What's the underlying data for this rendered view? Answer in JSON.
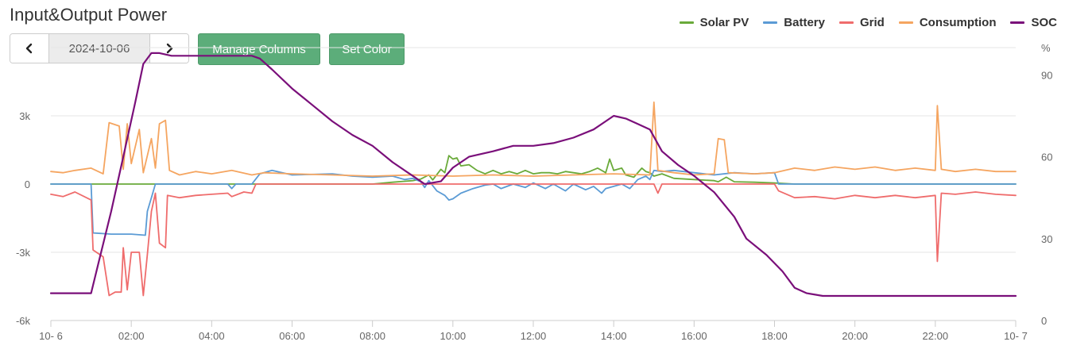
{
  "header": {
    "title": "Input&Output Power",
    "date": "2024-10-06",
    "manage_columns_label": "Manage Columns",
    "set_color_label": "Set Color"
  },
  "chart_data": {
    "type": "line",
    "title": "Input&Output Power",
    "xlabel": "",
    "ylabel": "",
    "y2label": "%",
    "x_ticks": [
      "10- 6",
      "02:00",
      "04:00",
      "06:00",
      "08:00",
      "10:00",
      "12:00",
      "14:00",
      "16:00",
      "18:00",
      "20:00",
      "22:00",
      "10- 7"
    ],
    "x_range_hours": [
      0,
      24
    ],
    "ylim": [
      -6000,
      6000
    ],
    "y_ticks": [
      "-6k",
      "-3k",
      "0",
      "3k"
    ],
    "y_tick_values": [
      -6000,
      -3000,
      0,
      3000
    ],
    "y2lim": [
      0,
      100
    ],
    "y2_ticks": [
      "0",
      "30",
      "60",
      "90",
      "%"
    ],
    "y2_tick_values": [
      0,
      30,
      60,
      90,
      100
    ],
    "grid": true,
    "legend_position": "top-right",
    "series": [
      {
        "name": "Solar PV",
        "color": "#6aaa3a",
        "axis": "left",
        "points": [
          [
            0,
            0
          ],
          [
            8,
            0
          ],
          [
            8.5,
            80
          ],
          [
            9,
            150
          ],
          [
            9.2,
            220
          ],
          [
            9.4,
            400
          ],
          [
            9.5,
            180
          ],
          [
            9.7,
            650
          ],
          [
            9.8,
            500
          ],
          [
            9.9,
            1250
          ],
          [
            10.0,
            1100
          ],
          [
            10.1,
            1150
          ],
          [
            10.2,
            800
          ],
          [
            10.4,
            850
          ],
          [
            10.6,
            600
          ],
          [
            10.8,
            450
          ],
          [
            11.0,
            600
          ],
          [
            11.2,
            450
          ],
          [
            11.4,
            550
          ],
          [
            11.6,
            450
          ],
          [
            11.8,
            600
          ],
          [
            12.0,
            450
          ],
          [
            12.2,
            500
          ],
          [
            12.4,
            500
          ],
          [
            12.6,
            450
          ],
          [
            12.8,
            550
          ],
          [
            13.0,
            500
          ],
          [
            13.2,
            450
          ],
          [
            13.4,
            550
          ],
          [
            13.6,
            700
          ],
          [
            13.8,
            500
          ],
          [
            13.9,
            1100
          ],
          [
            14.0,
            600
          ],
          [
            14.2,
            700
          ],
          [
            14.3,
            400
          ],
          [
            14.5,
            300
          ],
          [
            14.7,
            700
          ],
          [
            14.8,
            550
          ],
          [
            14.9,
            500
          ],
          [
            15.0,
            350
          ],
          [
            15.2,
            450
          ],
          [
            15.5,
            250
          ],
          [
            16.0,
            200
          ],
          [
            16.5,
            150
          ],
          [
            16.6,
            100
          ],
          [
            16.8,
            300
          ],
          [
            17.0,
            100
          ],
          [
            17.5,
            80
          ],
          [
            18.0,
            50
          ],
          [
            18.5,
            0
          ],
          [
            24,
            0
          ]
        ]
      },
      {
        "name": "Battery",
        "color": "#5b9bd5",
        "axis": "left",
        "points": [
          [
            0,
            0
          ],
          [
            1,
            0
          ],
          [
            1.05,
            -2150
          ],
          [
            1.5,
            -2200
          ],
          [
            2,
            -2200
          ],
          [
            2.35,
            -2250
          ],
          [
            2.4,
            -1200
          ],
          [
            2.5,
            -600
          ],
          [
            2.6,
            0
          ],
          [
            4.4,
            0
          ],
          [
            4.5,
            -200
          ],
          [
            4.6,
            0
          ],
          [
            5.0,
            0
          ],
          [
            5.2,
            450
          ],
          [
            5.5,
            600
          ],
          [
            6.0,
            400
          ],
          [
            7.0,
            450
          ],
          [
            7.5,
            350
          ],
          [
            8.0,
            300
          ],
          [
            8.5,
            350
          ],
          [
            8.8,
            200
          ],
          [
            9.0,
            250
          ],
          [
            9.2,
            100
          ],
          [
            9.3,
            -150
          ],
          [
            9.4,
            150
          ],
          [
            9.6,
            -300
          ],
          [
            9.8,
            -500
          ],
          [
            9.9,
            -700
          ],
          [
            10.0,
            -650
          ],
          [
            10.2,
            -400
          ],
          [
            10.5,
            -200
          ],
          [
            10.8,
            -50
          ],
          [
            11.0,
            0
          ],
          [
            11.2,
            -200
          ],
          [
            11.5,
            0
          ],
          [
            11.8,
            -150
          ],
          [
            12.0,
            50
          ],
          [
            12.3,
            -200
          ],
          [
            12.5,
            0
          ],
          [
            12.8,
            -300
          ],
          [
            13.0,
            0
          ],
          [
            13.3,
            -250
          ],
          [
            13.5,
            -100
          ],
          [
            13.7,
            -400
          ],
          [
            13.8,
            -200
          ],
          [
            14.0,
            -100
          ],
          [
            14.2,
            0
          ],
          [
            14.4,
            -200
          ],
          [
            14.6,
            200
          ],
          [
            14.8,
            350
          ],
          [
            14.9,
            200
          ],
          [
            15.0,
            600
          ],
          [
            15.2,
            550
          ],
          [
            15.5,
            600
          ],
          [
            16.0,
            500
          ],
          [
            16.5,
            400
          ],
          [
            17.0,
            500
          ],
          [
            17.5,
            450
          ],
          [
            18.0,
            500
          ],
          [
            18.1,
            0
          ],
          [
            24,
            0
          ]
        ]
      },
      {
        "name": "Grid",
        "color": "#ef6c6c",
        "axis": "left",
        "points": [
          [
            0,
            -450
          ],
          [
            0.3,
            -550
          ],
          [
            0.6,
            -350
          ],
          [
            1.0,
            -700
          ],
          [
            1.05,
            -2900
          ],
          [
            1.3,
            -3200
          ],
          [
            1.45,
            -4900
          ],
          [
            1.6,
            -4750
          ],
          [
            1.75,
            -4750
          ],
          [
            1.8,
            -2800
          ],
          [
            1.9,
            -4650
          ],
          [
            2.0,
            -3000
          ],
          [
            2.2,
            -3000
          ],
          [
            2.3,
            -4900
          ],
          [
            2.4,
            -3100
          ],
          [
            2.5,
            -1200
          ],
          [
            2.6,
            -400
          ],
          [
            2.7,
            -2600
          ],
          [
            2.85,
            -2800
          ],
          [
            2.9,
            -500
          ],
          [
            3.2,
            -600
          ],
          [
            3.6,
            -500
          ],
          [
            4.0,
            -450
          ],
          [
            4.4,
            -400
          ],
          [
            4.5,
            -550
          ],
          [
            4.8,
            -350
          ],
          [
            5.0,
            -400
          ],
          [
            5.1,
            0
          ],
          [
            15.0,
            0
          ],
          [
            15.1,
            -400
          ],
          [
            15.2,
            0
          ],
          [
            18.0,
            0
          ],
          [
            18.1,
            -300
          ],
          [
            18.5,
            -600
          ],
          [
            19.0,
            -550
          ],
          [
            19.5,
            -650
          ],
          [
            20.0,
            -500
          ],
          [
            20.5,
            -600
          ],
          [
            21.0,
            -500
          ],
          [
            21.5,
            -600
          ],
          [
            22.0,
            -500
          ],
          [
            22.05,
            -3400
          ],
          [
            22.15,
            -400
          ],
          [
            22.5,
            -450
          ],
          [
            23.0,
            -350
          ],
          [
            23.5,
            -450
          ],
          [
            24,
            -500
          ]
        ]
      },
      {
        "name": "Consumption",
        "color": "#f5a560",
        "axis": "left",
        "points": [
          [
            0,
            550
          ],
          [
            0.3,
            500
          ],
          [
            0.6,
            600
          ],
          [
            1.0,
            700
          ],
          [
            1.3,
            450
          ],
          [
            1.45,
            2700
          ],
          [
            1.7,
            2550
          ],
          [
            1.8,
            650
          ],
          [
            1.9,
            2650
          ],
          [
            2.0,
            900
          ],
          [
            2.2,
            2400
          ],
          [
            2.3,
            500
          ],
          [
            2.5,
            2000
          ],
          [
            2.6,
            700
          ],
          [
            2.7,
            2650
          ],
          [
            2.85,
            2800
          ],
          [
            2.95,
            600
          ],
          [
            3.2,
            400
          ],
          [
            3.6,
            550
          ],
          [
            4.0,
            450
          ],
          [
            4.5,
            600
          ],
          [
            5.0,
            400
          ],
          [
            5.3,
            500
          ],
          [
            6.0,
            450
          ],
          [
            7.0,
            400
          ],
          [
            8.0,
            350
          ],
          [
            9.0,
            400
          ],
          [
            10.0,
            350
          ],
          [
            11.0,
            400
          ],
          [
            12.0,
            350
          ],
          [
            13.0,
            400
          ],
          [
            14.0,
            450
          ],
          [
            14.9,
            400
          ],
          [
            15.0,
            3600
          ],
          [
            15.1,
            600
          ],
          [
            15.5,
            500
          ],
          [
            16.0,
            400
          ],
          [
            16.5,
            450
          ],
          [
            16.6,
            2000
          ],
          [
            16.75,
            1950
          ],
          [
            16.85,
            500
          ],
          [
            17.5,
            450
          ],
          [
            18.0,
            500
          ],
          [
            18.5,
            700
          ],
          [
            19.0,
            600
          ],
          [
            19.5,
            750
          ],
          [
            20.0,
            650
          ],
          [
            20.5,
            750
          ],
          [
            21.0,
            600
          ],
          [
            21.5,
            700
          ],
          [
            22.0,
            600
          ],
          [
            22.05,
            3450
          ],
          [
            22.15,
            650
          ],
          [
            22.5,
            550
          ],
          [
            23.0,
            650
          ],
          [
            23.5,
            550
          ],
          [
            24,
            550
          ]
        ]
      },
      {
        "name": "SOC",
        "color": "#7a0f7a",
        "axis": "right",
        "points": [
          [
            0,
            10
          ],
          [
            1,
            10
          ],
          [
            1.2,
            22
          ],
          [
            1.5,
            40
          ],
          [
            1.8,
            60
          ],
          [
            2.1,
            80
          ],
          [
            2.3,
            94
          ],
          [
            2.5,
            98
          ],
          [
            2.7,
            98
          ],
          [
            3.0,
            97
          ],
          [
            4.0,
            97
          ],
          [
            4.5,
            97
          ],
          [
            5.0,
            97
          ],
          [
            5.2,
            96
          ],
          [
            5.5,
            92
          ],
          [
            6.0,
            85
          ],
          [
            6.5,
            79
          ],
          [
            7.0,
            73
          ],
          [
            7.5,
            68
          ],
          [
            8.0,
            64
          ],
          [
            8.5,
            58
          ],
          [
            9.0,
            53
          ],
          [
            9.3,
            50
          ],
          [
            9.7,
            51
          ],
          [
            10.0,
            56
          ],
          [
            10.4,
            60
          ],
          [
            11.0,
            62
          ],
          [
            11.5,
            64
          ],
          [
            12.0,
            64
          ],
          [
            12.5,
            65
          ],
          [
            13.0,
            67
          ],
          [
            13.5,
            70
          ],
          [
            13.8,
            73
          ],
          [
            14.0,
            75
          ],
          [
            14.3,
            74
          ],
          [
            14.6,
            72
          ],
          [
            14.9,
            70
          ],
          [
            15.2,
            62
          ],
          [
            15.6,
            57
          ],
          [
            16.0,
            53
          ],
          [
            16.5,
            47
          ],
          [
            17.0,
            38
          ],
          [
            17.3,
            30
          ],
          [
            17.8,
            24
          ],
          [
            18.2,
            18
          ],
          [
            18.5,
            12
          ],
          [
            18.8,
            10
          ],
          [
            19.2,
            9
          ],
          [
            24,
            9
          ]
        ]
      }
    ]
  }
}
